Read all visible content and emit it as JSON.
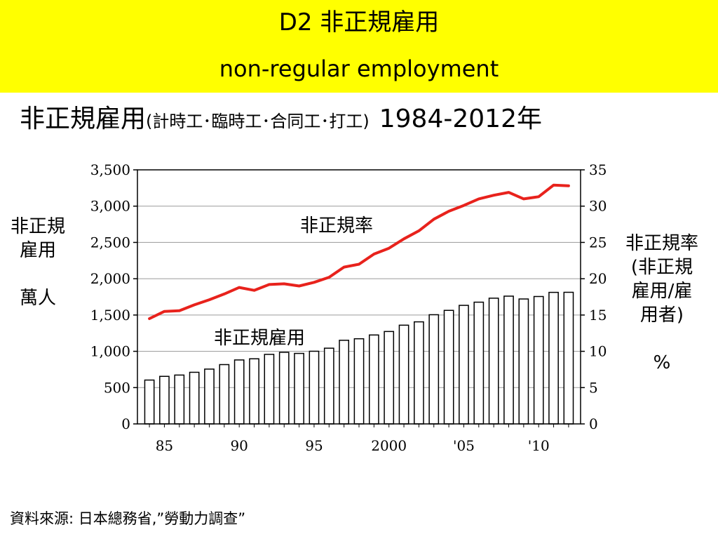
{
  "header": {
    "title_line1": "D2  非正規雇用",
    "title_line2": "non-regular employment",
    "bg_color": "#ffff00"
  },
  "subtitle": {
    "main": "非正規雇用",
    "paren": "(計時工･臨時工･合同工･打工)",
    "range": "1984-2012年"
  },
  "left_axis_title": {
    "line1": "非正規",
    "line2": "雇用",
    "unit": "萬人"
  },
  "right_axis_title": {
    "line1": "非正規率",
    "line2": "(非正規",
    "line3": "雇用/雇",
    "line4": "用者)",
    "unit": "%"
  },
  "source": "資料來源:  日本總務省,”勞動力調查”",
  "chart_data": {
    "type": "bar",
    "x": [
      1984,
      1985,
      1986,
      1987,
      1988,
      1989,
      1990,
      1991,
      1992,
      1993,
      1994,
      1995,
      1996,
      1997,
      1998,
      1999,
      2000,
      2001,
      2002,
      2003,
      2004,
      2005,
      2006,
      2007,
      2008,
      2009,
      2010,
      2011,
      2012
    ],
    "x_ticks": [
      {
        "value": 1985,
        "label": "85"
      },
      {
        "value": 1990,
        "label": "90"
      },
      {
        "value": 1995,
        "label": "95"
      },
      {
        "value": 2000,
        "label": "2000"
      },
      {
        "value": 2005,
        "label": "'05"
      },
      {
        "value": 2010,
        "label": "'10"
      }
    ],
    "xlim": [
      1983.2,
      2012.8
    ],
    "series": [
      {
        "name": "非正規雇用",
        "type": "bar",
        "axis": "left",
        "color": "#ffffff",
        "values": [
          604,
          655,
          673,
          711,
          755,
          817,
          881,
          897,
          958,
          986,
          971,
          1001,
          1043,
          1152,
          1173,
          1225,
          1273,
          1360,
          1406,
          1504,
          1564,
          1633,
          1677,
          1732,
          1760,
          1721,
          1755,
          1812,
          1813
        ]
      },
      {
        "name": "非正規率",
        "type": "line",
        "axis": "right",
        "color": "#e8221c",
        "values": [
          14.5,
          15.5,
          15.6,
          16.4,
          17.1,
          17.9,
          18.8,
          18.4,
          19.2,
          19.3,
          19.0,
          19.5,
          20.2,
          21.6,
          22.0,
          23.4,
          24.2,
          25.5,
          26.6,
          28.2,
          29.3,
          30.1,
          31.0,
          31.5,
          31.9,
          31.0,
          31.3,
          32.9,
          32.8
        ]
      }
    ],
    "series_labels": {
      "bar": "非正規雇用",
      "line": "非正規率"
    },
    "left_axis": {
      "min": 0,
      "max": 3500,
      "ticks": [
        0,
        500,
        1000,
        1500,
        2000,
        2500,
        3000,
        3500
      ],
      "tick_labels": [
        "0",
        "500",
        "1,000",
        "1,500",
        "2,000",
        "2,500",
        "3,000",
        "3,500"
      ]
    },
    "right_axis": {
      "min": 0,
      "max": 35,
      "ticks": [
        0,
        5,
        10,
        15,
        20,
        25,
        30,
        35
      ],
      "tick_labels": [
        "0",
        "5",
        "10",
        "15",
        "20",
        "25",
        "30",
        "35"
      ]
    },
    "grid": true,
    "legend": "none"
  }
}
